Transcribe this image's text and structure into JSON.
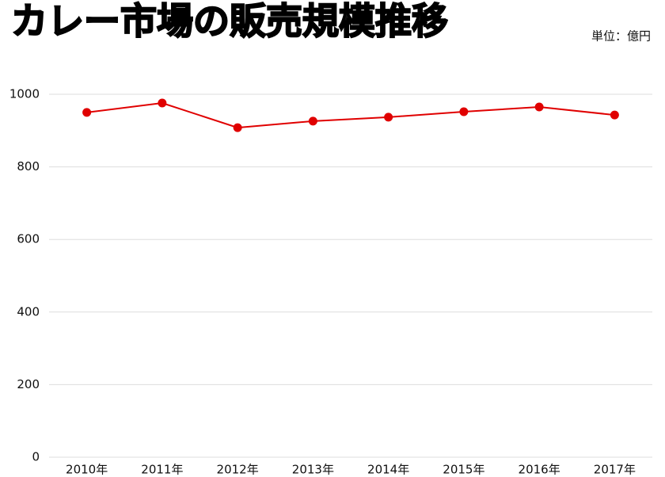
{
  "chart_data": {
    "type": "line",
    "title": "カレー市場の販売規模推移",
    "unit": "単位：億円",
    "categories": [
      "2010年",
      "2011年",
      "2012年",
      "2013年",
      "2014年",
      "2015年",
      "2016年",
      "2017年"
    ],
    "series": [
      {
        "color": "#e00000",
        "values": [
          950,
          976,
          908,
          926,
          937,
          952,
          965,
          943
        ]
      }
    ],
    "ylim": [
      0,
      1000
    ],
    "yticks": [
      0,
      200,
      400,
      600,
      800,
      1000
    ],
    "grid": true
  }
}
